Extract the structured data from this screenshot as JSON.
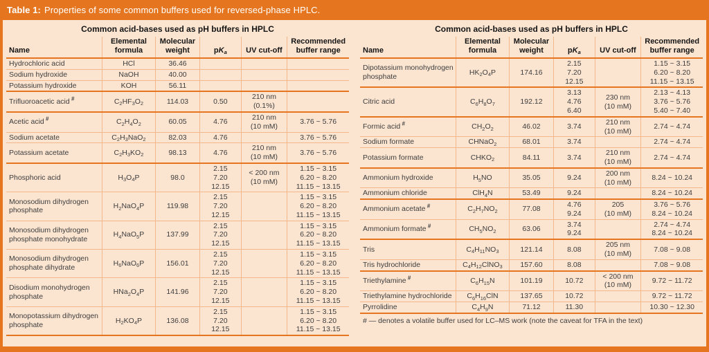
{
  "title": {
    "label": "Table 1:",
    "text": "Properties of some common buffers used for reversed-phase HPLC."
  },
  "panel_header": "Common acid-bases used as pH buffers in HPLC",
  "volatile_mark": "#",
  "columns": {
    "name": "Name",
    "formula": "Elemental formula",
    "weight": "Molecular weight",
    "pka_p": "p",
    "pka_k": "K",
    "pka_a": "a",
    "uv": "UV cut-off",
    "range": "Recommended buffer range"
  },
  "footnote": "# — denotes a volatile buffer used for LC–MS work (note the caveat for TFA in the text)",
  "colors": {
    "accent_orange": "#e5751e",
    "background_peach": "#fbe5d1",
    "light_line": "#f2b88c",
    "text": "#3d3d3d",
    "title_text": "#ffffff"
  },
  "tables": [
    {
      "rows": [
        {
          "name": "Hydrochloric acid",
          "formula": "HCl",
          "weight": "36.46",
          "pka": [],
          "uv": [],
          "range": []
        },
        {
          "name": "Sodium hydroxide",
          "formula": "NaOH",
          "weight": "40.00",
          "pka": [],
          "uv": [],
          "range": []
        },
        {
          "name": "Potassium hydroxide",
          "formula": "KOH",
          "weight": "56.11",
          "pka": [],
          "uv": [],
          "range": [],
          "group_end": true
        },
        {
          "name": "Trifluoroacetic acid",
          "volatile": true,
          "formula": "C_{2}HF_{3}O_{2}",
          "weight": "114.03",
          "pka": [
            "0.50"
          ],
          "uv": [
            "210 nm",
            "(0.1%)"
          ],
          "range": [],
          "group_end": true
        },
        {
          "name": "Acetic acid",
          "volatile": true,
          "formula": "C_{2}H_{4}O_{2}",
          "weight": "60.05",
          "pka": [
            "4.76"
          ],
          "uv": [
            "210 nm",
            "(10 mM)"
          ],
          "range": [
            "3.76 ~ 5.76"
          ]
        },
        {
          "name": "Sodium acetate",
          "formula": "C_{2}H_{3}NaO_{2}",
          "weight": "82.03",
          "pka": [
            "4.76"
          ],
          "uv": [],
          "range": [
            "3.76 ~ 5.76"
          ]
        },
        {
          "name": "Potassium acetate",
          "formula": "C_{2}H_{3}KO_{2}",
          "weight": "98.13",
          "pka": [
            "4.76"
          ],
          "uv": [
            "210 nm",
            "(10 mM)"
          ],
          "range": [
            "3.76 ~ 5.76"
          ],
          "group_end": true
        },
        {
          "name": "Phosphoric acid",
          "formula": "H_{3}O_{4}P",
          "weight": "98.0",
          "pka": [
            "2.15",
            "7.20",
            "12.15"
          ],
          "uv": [
            "< 200 nm",
            "(10 mM)"
          ],
          "range": [
            "1.15 ~ 3.15",
            "6.20 ~ 8.20",
            "11.15 ~ 13.15"
          ]
        },
        {
          "name": "Monosodium dihydrogen phosphate",
          "formula": "H_{2}NaO_{4}P",
          "weight": "119.98",
          "pka": [
            "2.15",
            "7.20",
            "12.15"
          ],
          "uv": [],
          "range": [
            "1.15 ~ 3.15",
            "6.20 ~ 8.20",
            "11.15 ~ 13.15"
          ]
        },
        {
          "name": "Monosodium dihydrogen phosphate monohydrate",
          "formula": "H_{4}NaO_{5}P",
          "weight": "137.99",
          "pka": [
            "2.15",
            "7.20",
            "12.15"
          ],
          "uv": [],
          "range": [
            "1.15 ~ 3.15",
            "6.20 ~ 8.20",
            "11.15 ~ 13.15"
          ]
        },
        {
          "name": "Monosodium dihydrogen phosphate dihydrate",
          "formula": "H_{6}NaO_{6}P",
          "weight": "156.01",
          "pka": [
            "2.15",
            "7.20",
            "12.15"
          ],
          "uv": [],
          "range": [
            "1.15 ~ 3.15",
            "6.20 ~ 8.20",
            "11.15 ~ 13.15"
          ]
        },
        {
          "name": "Disodium monohydrogen phosphate",
          "formula": "HNa_{2}O_{4}P",
          "weight": "141.96",
          "pka": [
            "2.15",
            "7.20",
            "12.15"
          ],
          "uv": [],
          "range": [
            "1.15 ~ 3.15",
            "6.20 ~ 8.20",
            "11.15 ~ 13.15"
          ]
        },
        {
          "name": "Monopotassium dihydrogen phosphate",
          "formula": "H_{2}KO_{4}P",
          "weight": "136.08",
          "pka": [
            "2.15",
            "7.20",
            "12.15"
          ],
          "uv": [],
          "range": [
            "1.15 ~ 3.15",
            "6.20 ~ 8.20",
            "11.15 ~ 13.15"
          ],
          "group_end": true
        }
      ]
    },
    {
      "rows": [
        {
          "name": "Dipotassium monohydrogen phosphate",
          "formula": "HK_{2}O_{4}P",
          "weight": "174.16",
          "pka": [
            "2.15",
            "7.20",
            "12.15"
          ],
          "uv": [],
          "range": [
            "1.15 ~ 3.15",
            "6.20 ~ 8.20",
            "11.15 ~ 13.15"
          ],
          "group_end": true
        },
        {
          "name": "Citric acid",
          "formula": "C_{6}H_{8}O_{7}",
          "weight": "192.12",
          "pka": [
            "3.13",
            "4.76",
            "6.40"
          ],
          "uv": [
            "230 nm",
            "(10 mM)"
          ],
          "range": [
            "2.13 ~ 4.13",
            "3.76 ~ 5.76",
            "5.40 ~ 7.40"
          ],
          "group_end": true
        },
        {
          "name": "Formic acid",
          "volatile": true,
          "formula": "CH_{2}O_{2}",
          "weight": "46.02",
          "pka": [
            "3.74"
          ],
          "uv": [
            "210 nm",
            "(10 mM)"
          ],
          "range": [
            "2.74 ~ 4.74"
          ]
        },
        {
          "name": "Sodium formate",
          "formula": "CHNaO_{2}",
          "weight": "68.01",
          "pka": [
            "3.74"
          ],
          "uv": [],
          "range": [
            "2.74 ~ 4.74"
          ]
        },
        {
          "name": "Potassium formate",
          "formula": "CHKO_{2}",
          "weight": "84.11",
          "pka": [
            "3.74"
          ],
          "uv": [
            "210 nm",
            "(10 mM)"
          ],
          "range": [
            "2.74 ~ 4.74"
          ],
          "group_end": true
        },
        {
          "name": "Ammonium hydroxide",
          "formula": "H_{5}NO",
          "weight": "35.05",
          "pka": [
            "9.24"
          ],
          "uv": [
            "200 nm",
            "(10 mM)"
          ],
          "range": [
            "8.24 ~ 10.24"
          ]
        },
        {
          "name": "Ammonium chloride",
          "formula": "ClH_{4}N",
          "weight": "53.49",
          "pka": [
            "9.24"
          ],
          "uv": [],
          "range": [
            "8.24 ~ 10.24"
          ],
          "group_end": true
        },
        {
          "name": "Ammonium acetate",
          "volatile": true,
          "formula": "C_{2}H_{7}NO_{2}",
          "weight": "77.08",
          "pka": [
            "4.76",
            "9.24"
          ],
          "uv": [
            "205",
            "(10 mM)"
          ],
          "range": [
            "3.76 ~ 5.76",
            "8.24 ~ 10.24"
          ]
        },
        {
          "name": "Ammonium formate",
          "volatile": true,
          "formula": "CH_{5}NO_{2}",
          "weight": "63.06",
          "pka": [
            "3.74",
            "9.24"
          ],
          "uv": [],
          "range": [
            "2.74 ~ 4.74",
            "8.24 ~ 10.24"
          ],
          "group_end": true
        },
        {
          "name": "Tris",
          "formula": "C_{4}H_{11}NO_{3}",
          "weight": "121.14",
          "pka": [
            "8.08"
          ],
          "uv": [
            "205 nm",
            "(10 mM)"
          ],
          "range": [
            "7.08 ~ 9.08"
          ]
        },
        {
          "name": "Tris hydrochloride",
          "formula": "C_{4}H_{12}ClNO_{3}",
          "weight": "157.60",
          "pka": [
            "8.08"
          ],
          "uv": [],
          "range": [
            "7.08 ~ 9.08"
          ],
          "group_end": true
        },
        {
          "name": "Triethylamine",
          "volatile": true,
          "formula": "C_{6}H_{15}N",
          "weight": "101.19",
          "pka": [
            "10.72"
          ],
          "uv": [
            "< 200 nm",
            "(10 mM)"
          ],
          "range": [
            "9.72 ~ 11.72"
          ]
        },
        {
          "name": "Triethylamine hydrochloride",
          "formula": "C_{6}H_{16}ClN",
          "weight": "137.65",
          "pka": [
            "10.72"
          ],
          "uv": [],
          "range": [
            "9.72 ~ 11.72"
          ]
        },
        {
          "name": "Pyrrolidine",
          "formula": "C_{4}H_{9}N",
          "weight": "71.12",
          "pka": [
            "11.30"
          ],
          "uv": [],
          "range": [
            "10.30 ~ 12.30"
          ],
          "group_end": true
        }
      ],
      "has_footnote": true
    }
  ]
}
